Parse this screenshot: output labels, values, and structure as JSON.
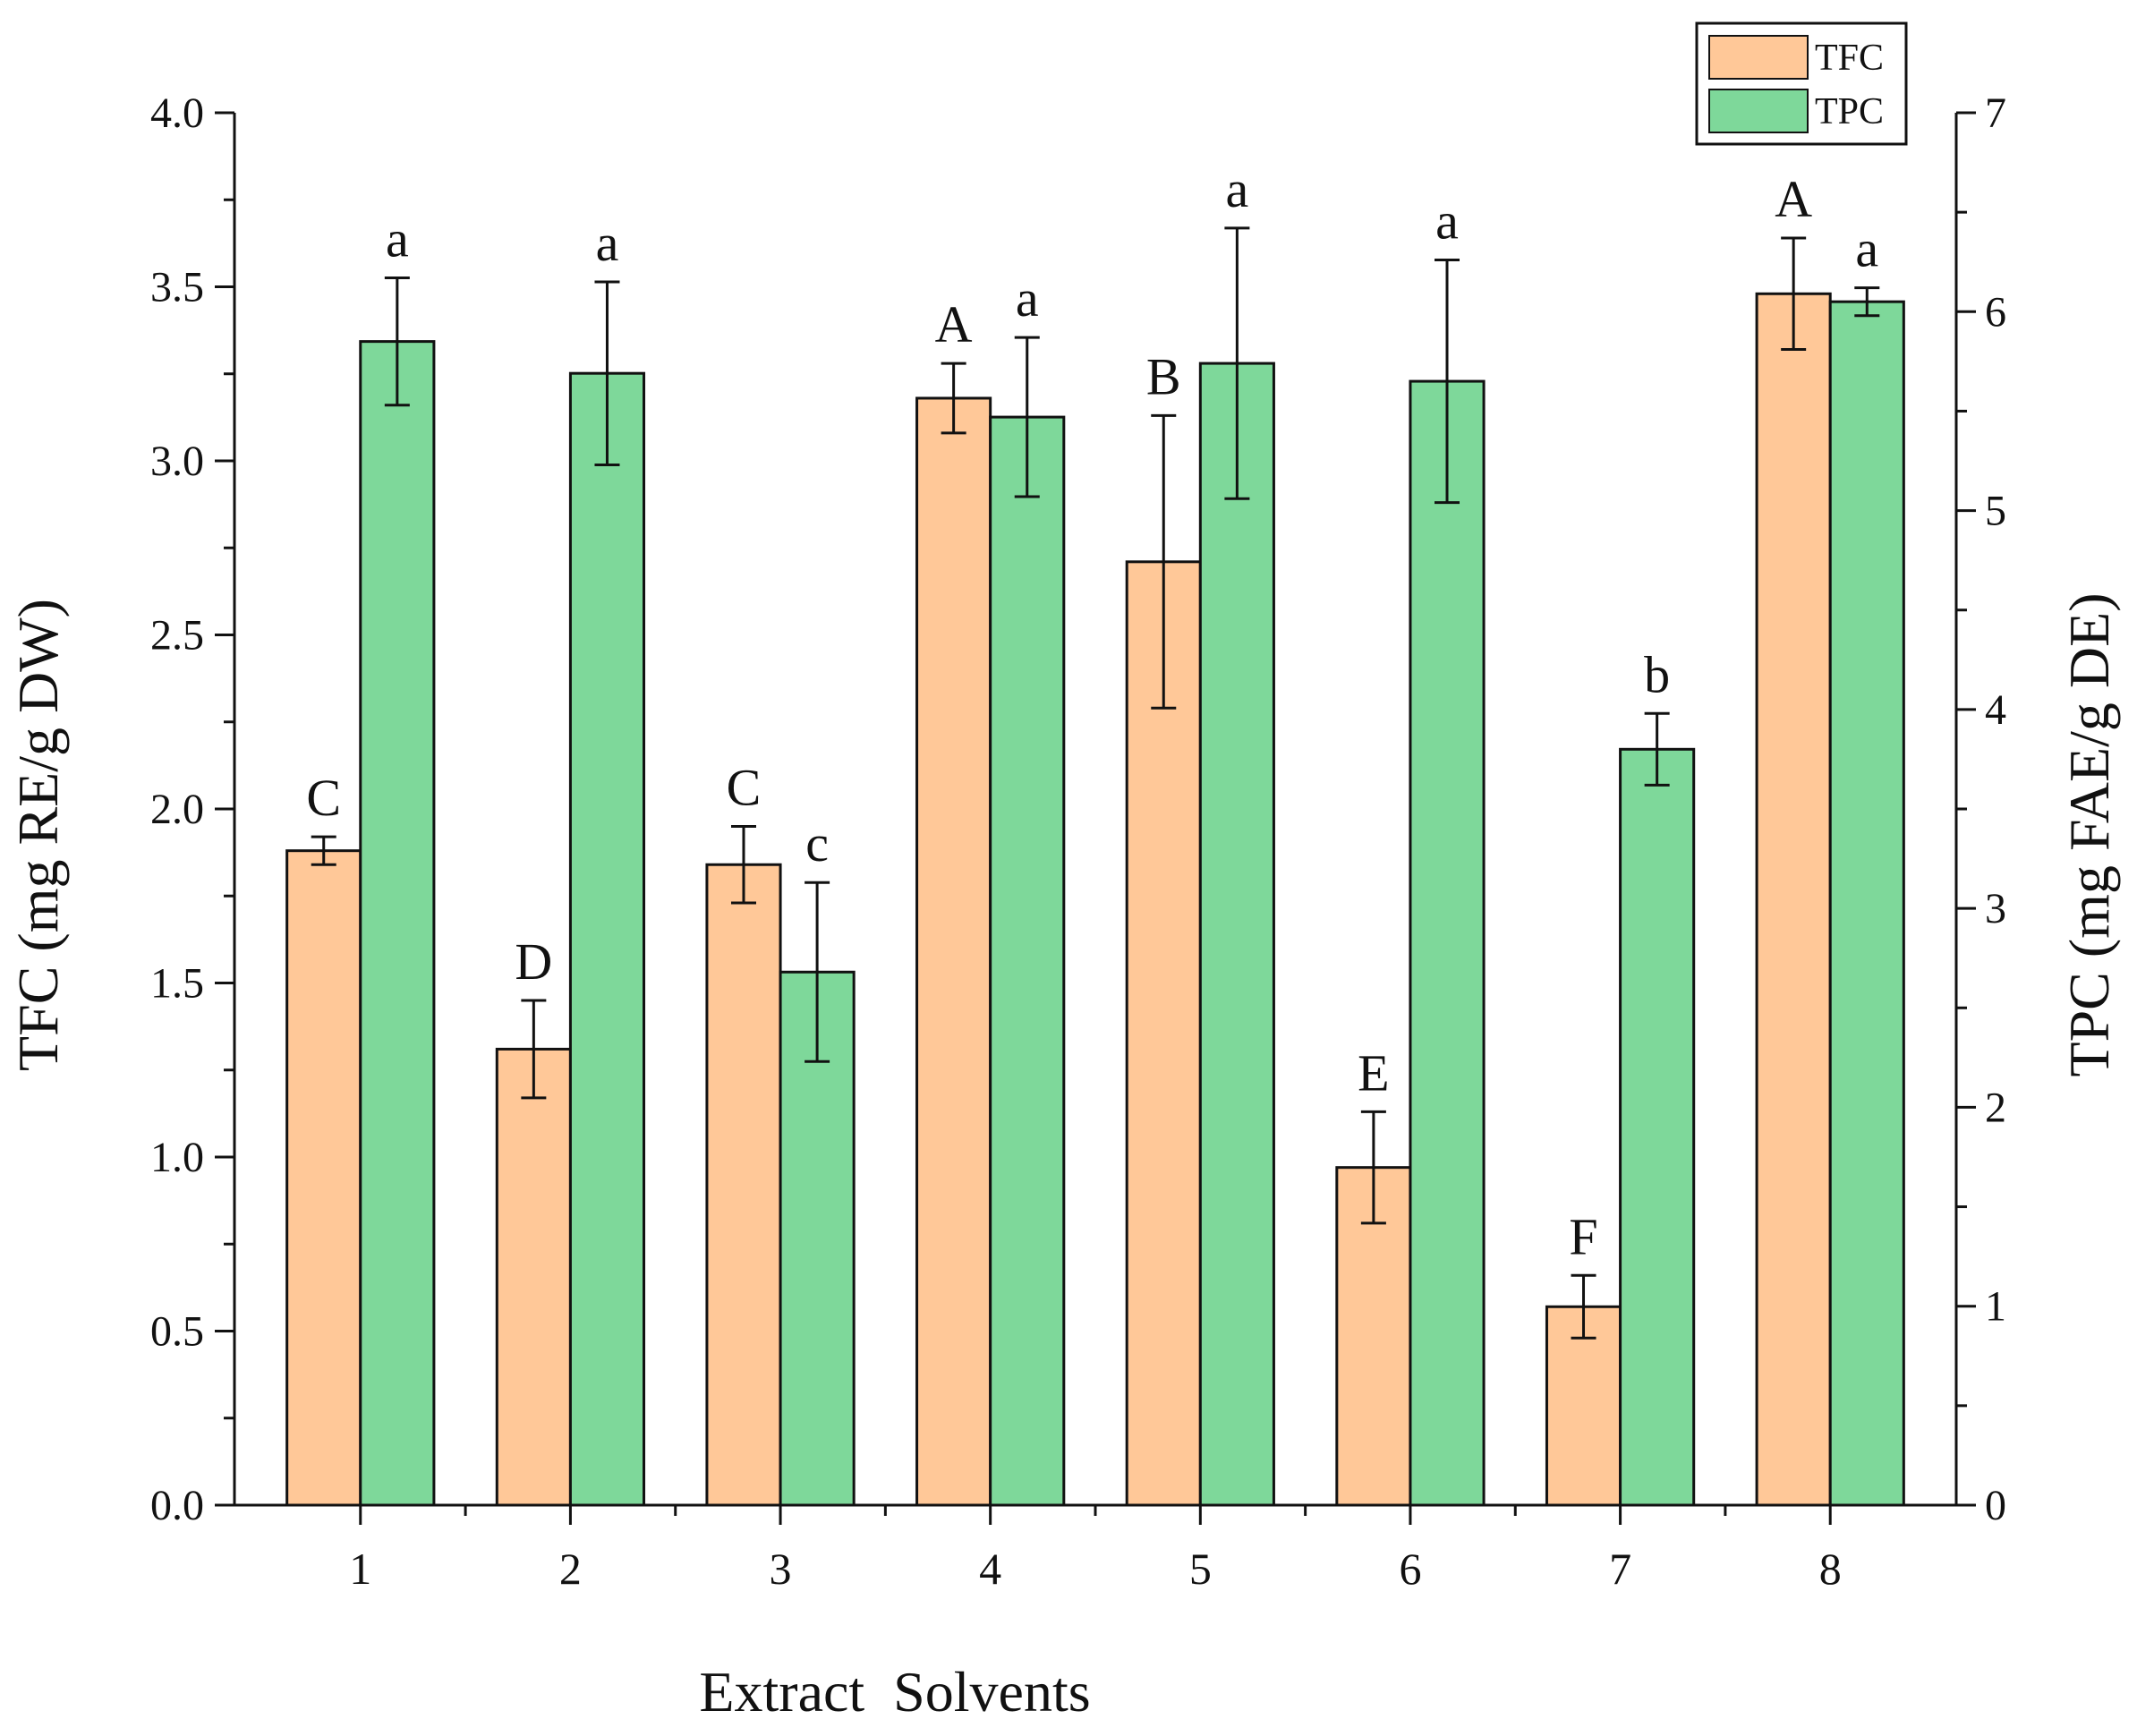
{
  "chart_data": {
    "type": "bar",
    "categories": [
      "1",
      "2",
      "3",
      "4",
      "5",
      "6",
      "7",
      "8"
    ],
    "xlabel": "Extract  Solvents",
    "ylabel_left": "TFC (mg RE/g DW)",
    "ylabel_right": "TPC (mg FAE/g DE)",
    "ylim_left": [
      0,
      4.0
    ],
    "ylim_right": [
      0,
      7
    ],
    "yticks_left": [
      "0.0",
      "0.5",
      "1.0",
      "1.5",
      "2.0",
      "2.5",
      "3.0",
      "3.5",
      "4.0"
    ],
    "yticks_right": [
      "0",
      "1",
      "2",
      "3",
      "4",
      "5",
      "6",
      "7"
    ],
    "grid": false,
    "legend_position": "top-right",
    "series": [
      {
        "name": "TFC",
        "axis": "left",
        "color": "#FFC898",
        "values": [
          1.88,
          1.31,
          1.84,
          3.18,
          2.71,
          0.97,
          0.57,
          3.48
        ],
        "errors": [
          0.04,
          0.14,
          0.11,
          0.1,
          0.42,
          0.16,
          0.09,
          0.16
        ],
        "letters": [
          "C",
          "D",
          "C",
          "A",
          "B",
          "E",
          "F",
          "A"
        ]
      },
      {
        "name": "TPC",
        "axis": "right",
        "color": "#7ED89A",
        "values": [
          5.85,
          5.69,
          2.68,
          5.47,
          5.74,
          5.65,
          3.8,
          6.05
        ],
        "errors": [
          0.32,
          0.46,
          0.45,
          0.4,
          0.68,
          0.61,
          0.18,
          0.07
        ],
        "letters": [
          "a",
          "a",
          "c",
          "a",
          "a",
          "a",
          "b",
          "a"
        ]
      }
    ]
  }
}
